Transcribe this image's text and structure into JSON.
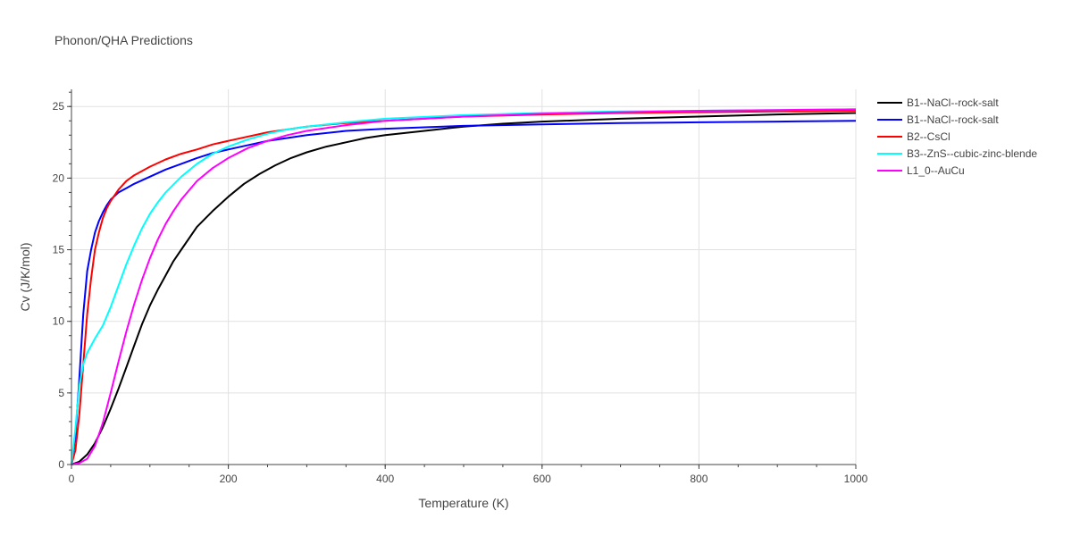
{
  "chart_data": {
    "type": "line",
    "title": "Phonon/QHA Predictions",
    "xlabel": "Temperature (K)",
    "ylabel": "Cv (J/K/mol)",
    "xlim": [
      0,
      1000
    ],
    "ylim": [
      0,
      26.2
    ],
    "xticks": [
      0,
      200,
      400,
      600,
      800,
      1000
    ],
    "yticks": [
      0,
      5,
      10,
      15,
      20,
      25
    ],
    "grid": true,
    "legend_position": "right",
    "series": [
      {
        "name": "B1--NaCl--rock-salt",
        "color": "#000000",
        "x": [
          0,
          10,
          20,
          30,
          40,
          50,
          60,
          70,
          80,
          90,
          100,
          110,
          120,
          130,
          140,
          160,
          180,
          200,
          220,
          240,
          260,
          280,
          300,
          325,
          350,
          375,
          400,
          450,
          500,
          550,
          600,
          700,
          800,
          900,
          1000
        ],
        "y": [
          0,
          0.2,
          0.7,
          1.5,
          2.6,
          3.9,
          5.3,
          6.8,
          8.3,
          9.8,
          11.1,
          12.2,
          13.2,
          14.2,
          15.0,
          16.6,
          17.7,
          18.7,
          19.6,
          20.3,
          20.9,
          21.4,
          21.8,
          22.2,
          22.5,
          22.8,
          23.0,
          23.3,
          23.6,
          23.8,
          23.95,
          24.15,
          24.3,
          24.45,
          24.55
        ]
      },
      {
        "name": "B1--NaCl--rock-salt",
        "color": "#0000ff",
        "x": [
          0,
          5,
          10,
          15,
          20,
          25,
          30,
          35,
          40,
          45,
          50,
          60,
          70,
          80,
          100,
          120,
          140,
          160,
          180,
          200,
          250,
          300,
          350,
          400,
          500,
          600,
          700,
          800,
          900,
          1000
        ],
        "y": [
          0,
          2.0,
          6.0,
          10.5,
          13.5,
          15.0,
          16.2,
          17.0,
          17.6,
          18.1,
          18.5,
          19.0,
          19.3,
          19.6,
          20.1,
          20.6,
          21.0,
          21.4,
          21.75,
          22.0,
          22.6,
          23.0,
          23.3,
          23.45,
          23.65,
          23.75,
          23.85,
          23.9,
          23.95,
          24.0
        ]
      },
      {
        "name": "B2--CsCl",
        "color": "#ff0000",
        "x": [
          0,
          5,
          10,
          15,
          20,
          25,
          30,
          35,
          40,
          45,
          50,
          60,
          70,
          80,
          100,
          120,
          140,
          160,
          180,
          200,
          250,
          300,
          350,
          400,
          500,
          600,
          700,
          800,
          900,
          1000
        ],
        "y": [
          0,
          1.0,
          3.5,
          7.0,
          10.5,
          13.0,
          15.0,
          16.2,
          17.2,
          17.9,
          18.4,
          19.2,
          19.8,
          20.2,
          20.8,
          21.3,
          21.7,
          22.0,
          22.35,
          22.6,
          23.2,
          23.6,
          23.85,
          24.0,
          24.3,
          24.45,
          24.55,
          24.6,
          24.65,
          24.7
        ]
      },
      {
        "name": "B3--ZnS--cubic-zinc-blende",
        "color": "#00ffff",
        "x": [
          0,
          5,
          10,
          15,
          20,
          25,
          30,
          40,
          50,
          60,
          70,
          80,
          90,
          100,
          110,
          120,
          140,
          160,
          180,
          200,
          225,
          250,
          275,
          300,
          350,
          400,
          500,
          600,
          700,
          800,
          900,
          1000
        ],
        "y": [
          0,
          2.5,
          5.5,
          7.0,
          7.8,
          8.3,
          8.8,
          9.7,
          11.0,
          12.5,
          14.0,
          15.3,
          16.5,
          17.5,
          18.3,
          19.0,
          20.1,
          21.0,
          21.7,
          22.2,
          22.7,
          23.1,
          23.4,
          23.6,
          23.9,
          24.15,
          24.4,
          24.55,
          24.65,
          24.7,
          24.75,
          24.8
        ]
      },
      {
        "name": "L1_0--AuCu",
        "color": "#ff00ff",
        "x": [
          0,
          10,
          20,
          30,
          40,
          50,
          60,
          70,
          80,
          90,
          100,
          110,
          120,
          130,
          140,
          160,
          180,
          200,
          225,
          250,
          275,
          300,
          350,
          400,
          500,
          600,
          700,
          800,
          900,
          1000
        ],
        "y": [
          0,
          0.1,
          0.4,
          1.3,
          2.9,
          5.0,
          7.2,
          9.3,
          11.2,
          12.9,
          14.4,
          15.7,
          16.8,
          17.7,
          18.5,
          19.8,
          20.7,
          21.4,
          22.1,
          22.6,
          23.0,
          23.3,
          23.7,
          24.0,
          24.3,
          24.5,
          24.6,
          24.7,
          24.75,
          24.8
        ]
      }
    ]
  }
}
